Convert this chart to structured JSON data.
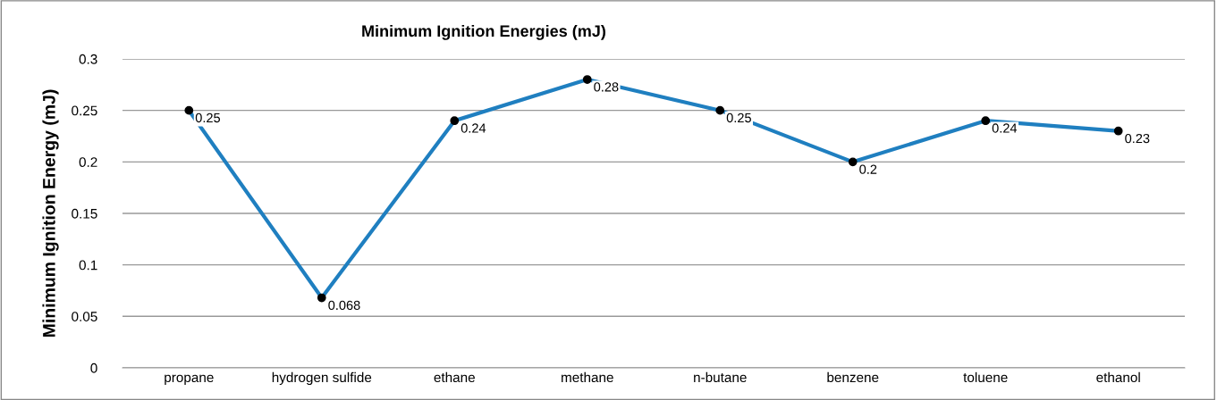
{
  "chart_data": {
    "type": "line",
    "title": "Minimum Ignition Energies (mJ)",
    "ylabel": "Minimum Ignition Energy (mJ)",
    "categories": [
      "propane",
      "hydrogen sulfide",
      "ethane",
      "methane",
      "n-butane",
      "benzene",
      "toluene",
      "ethanol"
    ],
    "series": [
      {
        "color": "#1f7fc0",
        "values": [
          0.25,
          0.068,
          0.24,
          0.28,
          0.25,
          0.2,
          0.24,
          0.23
        ]
      }
    ],
    "ylim": [
      0,
      0.3
    ],
    "yticks": [
      0,
      0.05,
      0.1,
      0.15,
      0.2,
      0.25,
      0.3
    ],
    "grid": "y",
    "marker": "circle",
    "line_style": "solid",
    "data_labels": true,
    "legend": false
  }
}
